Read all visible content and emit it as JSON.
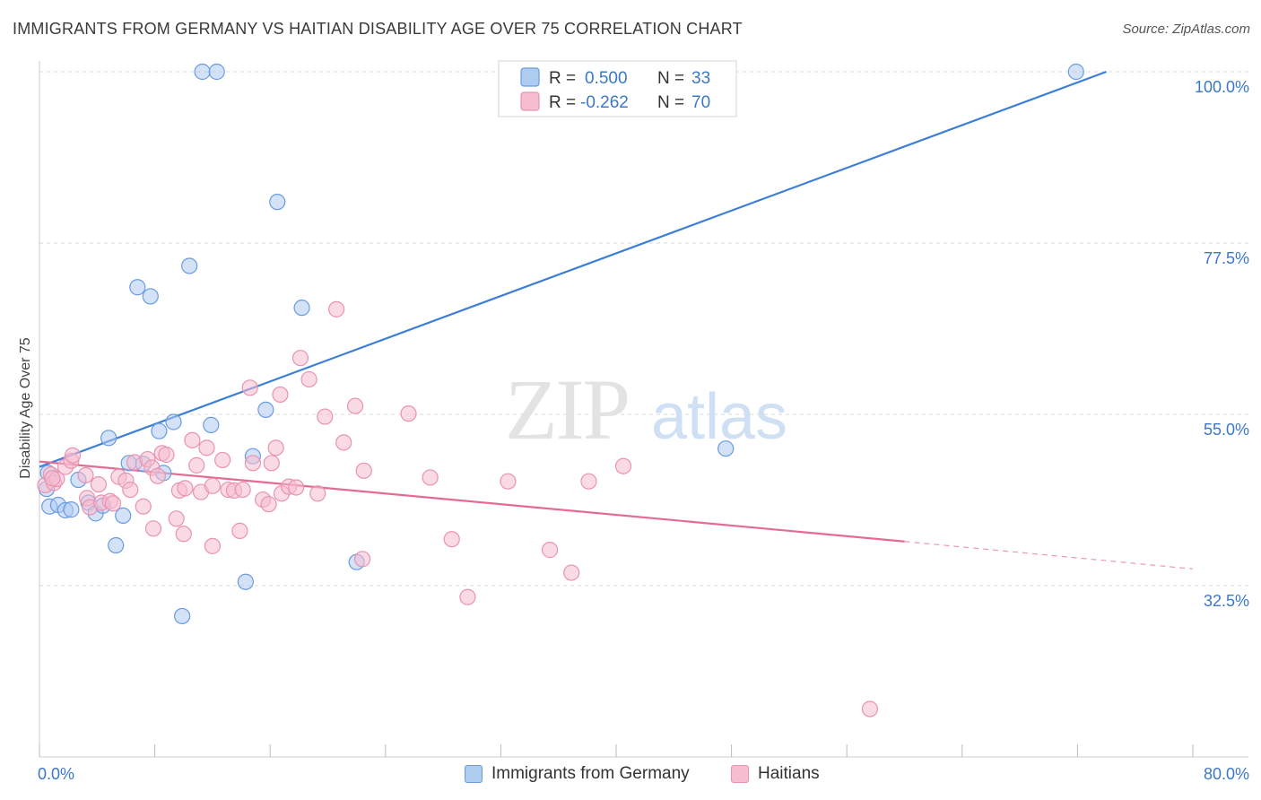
{
  "title": "IMMIGRANTS FROM GERMANY VS HAITIAN DISABILITY AGE OVER 75 CORRELATION CHART",
  "source": "Source: ZipAtlas.com",
  "watermark": {
    "zip": "ZIP",
    "atlas": "atlas"
  },
  "colors": {
    "blue": "#3d7fd6",
    "blue_fill": "#aecbf0",
    "pink": "#e46b96",
    "pink_fill": "#f6bccf",
    "axis_text": "#3b78c8",
    "grid": "#d9d9d9"
  },
  "legend_top": [
    {
      "r_label": "R =",
      "r_value": "0.500",
      "n_label": "N =",
      "n_value": "33",
      "series": "germany"
    },
    {
      "r_label": "R =",
      "r_value": "-0.262",
      "n_label": "N =",
      "n_value": "70",
      "series": "haitians"
    }
  ],
  "legend_bottom": [
    {
      "label": "Immigrants from Germany",
      "series": "germany"
    },
    {
      "label": "Haitians",
      "series": "haitians"
    }
  ],
  "chart_data": {
    "type": "scatter",
    "title": "IMMIGRANTS FROM GERMANY VS HAITIAN DISABILITY AGE OVER 75 CORRELATION CHART",
    "xlabel": "",
    "ylabel": "Disability Age Over 75",
    "xlim": [
      0,
      80
    ],
    "ylim": [
      12.5,
      102.5
    ],
    "x_tick_labels": [
      {
        "value": 0,
        "label": "0.0%"
      },
      {
        "value": 80,
        "label": "80.0%"
      }
    ],
    "y_tick_labels": [
      {
        "value": 100,
        "label": "100.0%"
      },
      {
        "value": 77.5,
        "label": "77.5%"
      },
      {
        "value": 55,
        "label": "55.0%"
      },
      {
        "value": 32.5,
        "label": "32.5%"
      }
    ],
    "x_minor_ticks": [
      0,
      8,
      16,
      24,
      32,
      40,
      48,
      56,
      64,
      72,
      80
    ],
    "y_gridlines": [
      102.5,
      80,
      57.5,
      35
    ],
    "series": [
      {
        "name": "Immigrants from Germany",
        "key": "germany",
        "r": 0.5,
        "n": 33,
        "trend": {
          "x0": 0,
          "y0": 50.6,
          "x1": 74,
          "y1": 102.5,
          "dashed_to": null
        },
        "points": [
          [
            0.5,
            47.7
          ],
          [
            0.6,
            49.8
          ],
          [
            0.7,
            45.4
          ],
          [
            1.3,
            45.6
          ],
          [
            1.8,
            44.9
          ],
          [
            2.2,
            45.0
          ],
          [
            2.7,
            48.9
          ],
          [
            3.4,
            45.9
          ],
          [
            3.9,
            44.5
          ],
          [
            4.4,
            45.5
          ],
          [
            4.8,
            54.4
          ],
          [
            5.3,
            40.3
          ],
          [
            5.8,
            44.2
          ],
          [
            6.2,
            51.1
          ],
          [
            6.8,
            74.2
          ],
          [
            7.2,
            51.0
          ],
          [
            7.7,
            73.0
          ],
          [
            8.3,
            55.3
          ],
          [
            8.6,
            49.8
          ],
          [
            9.3,
            56.5
          ],
          [
            9.9,
            31.0
          ],
          [
            10.4,
            77.0
          ],
          [
            11.3,
            102.5
          ],
          [
            12.3,
            102.5
          ],
          [
            11.9,
            56.1
          ],
          [
            14.3,
            35.5
          ],
          [
            14.8,
            52.0
          ],
          [
            15.7,
            58.1
          ],
          [
            16.5,
            85.4
          ],
          [
            18.2,
            71.5
          ],
          [
            22.0,
            38.1
          ],
          [
            47.6,
            53.0
          ],
          [
            71.9,
            102.5
          ]
        ]
      },
      {
        "name": "Haitians",
        "key": "haitians",
        "r": -0.262,
        "n": 70,
        "trend": {
          "x0": 0,
          "y0": 51.3,
          "x1": 60,
          "y1": 40.8,
          "dashed_to": {
            "x": 80,
            "y": 37.2
          }
        },
        "points": [
          [
            0.4,
            48.2
          ],
          [
            0.8,
            49.6
          ],
          [
            1.0,
            48.5
          ],
          [
            1.2,
            49.0
          ],
          [
            1.8,
            50.6
          ],
          [
            2.2,
            51.4
          ],
          [
            2.3,
            52.1
          ],
          [
            3.2,
            49.5
          ],
          [
            3.3,
            46.5
          ],
          [
            3.5,
            45.3
          ],
          [
            4.1,
            48.3
          ],
          [
            4.3,
            45.9
          ],
          [
            4.9,
            46.1
          ],
          [
            5.1,
            45.8
          ],
          [
            5.5,
            49.3
          ],
          [
            6.0,
            48.8
          ],
          [
            6.3,
            47.6
          ],
          [
            6.6,
            51.2
          ],
          [
            7.2,
            45.4
          ],
          [
            7.5,
            51.6
          ],
          [
            7.8,
            50.5
          ],
          [
            7.9,
            42.5
          ],
          [
            8.2,
            49.4
          ],
          [
            8.5,
            52.4
          ],
          [
            8.8,
            52.2
          ],
          [
            9.5,
            43.8
          ],
          [
            9.7,
            47.5
          ],
          [
            10.1,
            47.8
          ],
          [
            10.0,
            41.8
          ],
          [
            10.6,
            54.1
          ],
          [
            10.9,
            50.8
          ],
          [
            11.2,
            47.3
          ],
          [
            11.6,
            53.1
          ],
          [
            12.0,
            48.1
          ],
          [
            12.0,
            40.2
          ],
          [
            12.7,
            51.5
          ],
          [
            13.1,
            47.6
          ],
          [
            13.5,
            47.5
          ],
          [
            13.9,
            42.2
          ],
          [
            14.1,
            47.6
          ],
          [
            14.6,
            61.0
          ],
          [
            14.8,
            51.1
          ],
          [
            15.5,
            46.3
          ],
          [
            15.9,
            45.7
          ],
          [
            16.1,
            51.1
          ],
          [
            16.4,
            53.1
          ],
          [
            16.7,
            60.1
          ],
          [
            16.8,
            47.1
          ],
          [
            17.3,
            48.0
          ],
          [
            17.8,
            47.9
          ],
          [
            18.1,
            64.9
          ],
          [
            18.7,
            62.1
          ],
          [
            19.3,
            47.1
          ],
          [
            19.8,
            57.2
          ],
          [
            20.6,
            71.3
          ],
          [
            21.1,
            53.8
          ],
          [
            21.9,
            58.6
          ],
          [
            22.4,
            38.5
          ],
          [
            22.5,
            50.1
          ],
          [
            25.6,
            57.6
          ],
          [
            27.1,
            49.2
          ],
          [
            28.6,
            41.1
          ],
          [
            29.7,
            33.5
          ],
          [
            32.5,
            48.7
          ],
          [
            35.4,
            39.7
          ],
          [
            36.9,
            36.7
          ],
          [
            38.1,
            48.7
          ],
          [
            40.5,
            50.7
          ],
          [
            57.6,
            18.8
          ],
          [
            0.9,
            49.1
          ]
        ]
      }
    ]
  }
}
